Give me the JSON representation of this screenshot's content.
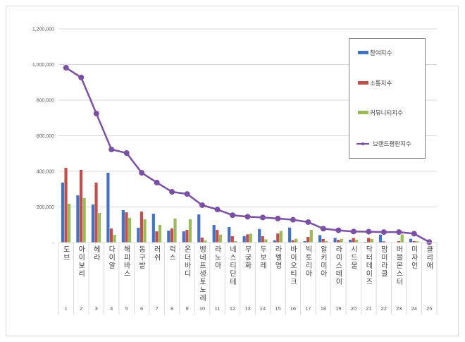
{
  "chart_data": {
    "type": "bar",
    "title": "",
    "xlabel": "",
    "ylabel": "",
    "ylim": [
      0,
      1200000
    ],
    "yticks": [
      "-",
      "200,000",
      "400,000",
      "600,000",
      "800,000",
      "1,000,000",
      "1,200,000"
    ],
    "grid": true,
    "legend_position": "right",
    "ranks": [
      "1",
      "2",
      "3",
      "4",
      "5",
      "6",
      "7",
      "8",
      "9",
      "10",
      "11",
      "12",
      "13",
      "14",
      "15",
      "16",
      "17",
      "18",
      "19",
      "20",
      "21",
      "22",
      "23",
      "24",
      "25"
    ],
    "categories": [
      "도브",
      "아이보리",
      "헤라",
      "다이알",
      "해피바스",
      "동구밭",
      "러쉬",
      "럭스",
      "온더바디",
      "뱅네프생토노레",
      "라노아",
      "네스티단테",
      "무궁화",
      "두보레",
      "라벨영",
      "바이오티크",
      "빅토리아",
      "알키미아",
      "라이스데이",
      "시드물",
      "닥터데이즈",
      "맘미라클",
      "버블몬스터",
      "미자인",
      "클리애"
    ],
    "series": [
      {
        "name": "참여지수",
        "type": "bar",
        "color": "#4472c4",
        "values": [
          337000,
          265000,
          214000,
          392000,
          182000,
          83000,
          162000,
          67000,
          63000,
          158000,
          99000,
          87000,
          36000,
          76000,
          13000,
          84000,
          8000,
          42000,
          26000,
          16000,
          4000,
          45000,
          1000,
          21000,
          0
        ]
      },
      {
        "name": "소통지수",
        "type": "bar",
        "color": "#c0504d",
        "values": [
          420000,
          408000,
          337000,
          79000,
          170000,
          174000,
          63000,
          79000,
          71000,
          28000,
          71000,
          36000,
          46000,
          36000,
          51000,
          13000,
          32000,
          20000,
          15000,
          26000,
          26000,
          7000,
          8000,
          8000,
          0
        ]
      },
      {
        "name": "커뮤니티지수",
        "type": "bar",
        "color": "#9bbb59",
        "values": [
          218000,
          250000,
          166000,
          44000,
          139000,
          131000,
          99000,
          135000,
          131000,
          12000,
          44000,
          8000,
          50000,
          18000,
          65000,
          21000,
          71000,
          8000,
          21000,
          16000,
          20000,
          1000,
          45000,
          8000,
          0
        ]
      },
      {
        "name": "브랜드평판지수",
        "type": "line",
        "color": "#7b4fa3",
        "values": [
          982000,
          927000,
          725000,
          523000,
          503000,
          392000,
          337000,
          285000,
          273000,
          210000,
          186000,
          154000,
          145000,
          141000,
          135000,
          128000,
          115000,
          78000,
          69000,
          62000,
          61000,
          59000,
          59000,
          50000,
          3000
        ]
      }
    ]
  }
}
